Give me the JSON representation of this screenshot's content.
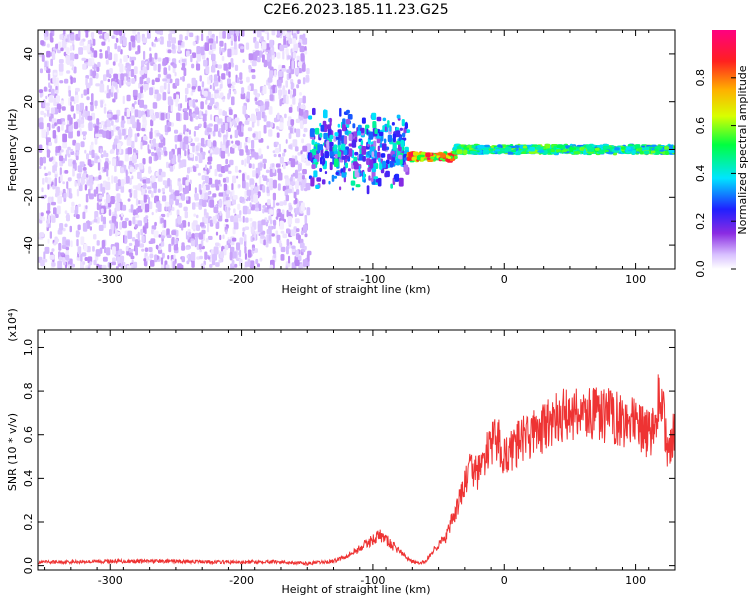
{
  "title": "C2E6.2023.185.11.23.G25",
  "chart_data": [
    {
      "type": "heatmap",
      "xlabel": "Height of straight line (km)",
      "ylabel": "Frequency (Hz)",
      "xlim": [
        -355,
        130
      ],
      "ylim": [
        -50,
        50
      ],
      "xticks": [
        -300,
        -200,
        -100,
        0,
        100
      ],
      "xtick_labels": [
        "-300",
        "-200",
        "-100",
        "0",
        "100"
      ],
      "yticks": [
        -40,
        -20,
        0,
        20,
        40
      ],
      "ytick_labels": [
        "-40",
        "-20",
        "0",
        "20",
        "40"
      ],
      "grid": false,
      "colorbar": {
        "label": "Normalized spectral amplitude",
        "range": [
          0,
          1
        ],
        "ticks": [
          0,
          0.2,
          0.4,
          0.6,
          0.8
        ],
        "tick_labels": [
          "0.0",
          "0.2",
          "0.4",
          "0.6",
          "0.8"
        ],
        "colormap": "rainbow (white-violet-blue-cyan-green-yellow-red-magenta)"
      },
      "regions": [
        {
          "x_range": [
            -355,
            -150
          ],
          "frequency_spread": [
            -50,
            50
          ],
          "amplitude": 0.05
        },
        {
          "x_range": [
            -150,
            -75
          ],
          "frequency_spread": [
            -12,
            12
          ],
          "amplitude": 0.25
        },
        {
          "x_range": [
            -75,
            -40
          ],
          "frequency_center": -3,
          "amplitude": 0.8
        },
        {
          "x_range": [
            -40,
            130
          ],
          "frequency_center": 0,
          "amplitude": 0.5
        }
      ]
    },
    {
      "type": "line",
      "xlabel": "Height of straight line (km)",
      "ylabel": "SNR (10 * v/v)",
      "y_multiplier": "(x10⁴)",
      "xlim": [
        -355,
        130
      ],
      "ylim": [
        -0.02,
        1.08
      ],
      "xticks": [
        -300,
        -200,
        -100,
        0,
        100
      ],
      "xtick_labels": [
        "-300",
        "-200",
        "-100",
        "0",
        "100"
      ],
      "yticks": [
        0.0,
        0.2,
        0.4,
        0.6,
        0.8,
        1.0
      ],
      "ytick_labels": [
        "0.0",
        "0.2",
        "0.4",
        "0.6",
        "0.8",
        "1.0"
      ],
      "grid": false,
      "series": [
        {
          "color": "#ee3333",
          "x": [
            -355,
            -300,
            -250,
            -200,
            -180,
            -150,
            -130,
            -115,
            -105,
            -100,
            -95,
            -90,
            -85,
            -80,
            -75,
            -70,
            -65,
            -60,
            -55,
            -50,
            -45,
            -40,
            -35,
            -30,
            -25,
            -20,
            -15,
            -10,
            -5,
            0,
            5,
            10,
            20,
            30,
            40,
            50,
            60,
            70,
            80,
            90,
            95,
            100,
            105,
            110,
            115,
            118,
            122,
            125,
            130
          ],
          "y": [
            0.015,
            0.02,
            0.02,
            0.015,
            0.02,
            0.01,
            0.02,
            0.06,
            0.1,
            0.12,
            0.14,
            0.12,
            0.09,
            0.07,
            0.04,
            0.02,
            0.01,
            0.02,
            0.06,
            0.1,
            0.12,
            0.2,
            0.28,
            0.38,
            0.45,
            0.42,
            0.5,
            0.55,
            0.58,
            0.5,
            0.52,
            0.56,
            0.6,
            0.63,
            0.67,
            0.7,
            0.7,
            0.69,
            0.69,
            0.67,
            0.66,
            0.64,
            0.62,
            0.6,
            0.65,
            0.8,
            0.65,
            0.5,
            0.62
          ]
        }
      ]
    }
  ]
}
